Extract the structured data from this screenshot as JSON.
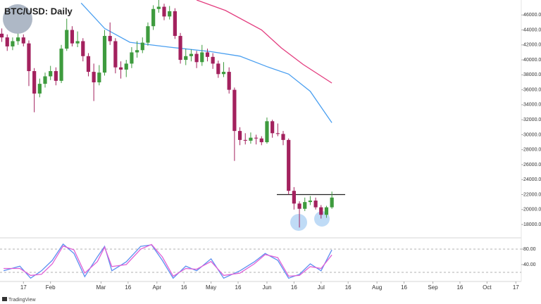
{
  "chart_data": [
    {
      "type": "candlestick",
      "title": "BTC/USD: Daily",
      "x": [
        5,
        8,
        11,
        14,
        17,
        20,
        23,
        26,
        29,
        32,
        35,
        38,
        41,
        44,
        47,
        50,
        53,
        56,
        59,
        62,
        65,
        68,
        71,
        74,
        77,
        80,
        83,
        86,
        89,
        92,
        95,
        98,
        101,
        104,
        107,
        110,
        113,
        116,
        119,
        122,
        125,
        128,
        131,
        134,
        137,
        140,
        143,
        146,
        149,
        152,
        155,
        158,
        161,
        164,
        167,
        170,
        173,
        176,
        179,
        182,
        185,
        188
      ],
      "open": [
        43500,
        43000,
        41800,
        42500,
        43000,
        42200,
        38500,
        35500,
        36800,
        37800,
        38500,
        37200,
        41500,
        44000,
        42200,
        42500,
        40500,
        38400,
        37000,
        38300,
        43200,
        42500,
        39000,
        38700,
        39500,
        41000,
        41300,
        42300,
        44500,
        46800,
        47100,
        45800,
        46500,
        43200,
        40000,
        40500,
        40800,
        39700,
        41000,
        40400,
        39500,
        38100,
        38400,
        36000,
        30500,
        29300,
        29200,
        29600,
        29500,
        29000,
        31800,
        30200,
        30100,
        29300,
        22500,
        20800,
        20100,
        21000,
        21200,
        20300,
        19300,
        20300
      ],
      "high": [
        44200,
        43400,
        43000,
        43500,
        43400,
        42600,
        38900,
        37500,
        38300,
        39200,
        39000,
        42000,
        45500,
        44500,
        43800,
        42900,
        40900,
        39500,
        39300,
        44000,
        45000,
        42900,
        39800,
        40000,
        41700,
        42500,
        43000,
        45000,
        47300,
        48000,
        47500,
        47200,
        46900,
        43600,
        41500,
        41400,
        41200,
        42000,
        41500,
        40900,
        39900,
        39700,
        39000,
        36300,
        31000,
        30200,
        30300,
        30000,
        29800,
        32300,
        32000,
        31500,
        30500,
        29500,
        23000,
        21100,
        21600,
        21800,
        21600,
        20600,
        20500,
        22400
      ],
      "low": [
        42400,
        41200,
        41300,
        42000,
        41800,
        36500,
        33000,
        35000,
        36300,
        37300,
        36600,
        36900,
        41200,
        41800,
        41700,
        39800,
        37800,
        34500,
        36600,
        37900,
        42000,
        38200,
        37500,
        37700,
        38900,
        40300,
        40900,
        41900,
        44000,
        46300,
        45300,
        45400,
        42800,
        39500,
        39300,
        39800,
        38900,
        39200,
        39800,
        38800,
        37600,
        37700,
        35500,
        26500,
        28600,
        28700,
        28800,
        28700,
        28600,
        28800,
        29600,
        29800,
        28600,
        22000,
        20000,
        17600,
        19800,
        20600,
        20000,
        18800,
        18900,
        20100
      ],
      "close": [
        43000,
        41800,
        42500,
        43000,
        42200,
        38500,
        35500,
        36800,
        37800,
        38500,
        37200,
        41500,
        44000,
        42200,
        42500,
        40500,
        38400,
        37000,
        38300,
        43200,
        42500,
        39000,
        38700,
        39500,
        41000,
        41300,
        42300,
        44500,
        46800,
        47100,
        45800,
        46500,
        43200,
        40000,
        40500,
        40800,
        39700,
        41000,
        40400,
        39500,
        38100,
        38400,
        36000,
        30500,
        29300,
        29200,
        29600,
        29500,
        29000,
        31800,
        30200,
        30100,
        29300,
        22500,
        20800,
        20100,
        21000,
        21200,
        20300,
        19300,
        20300,
        21600
      ],
      "up_color": "#3e9b3e",
      "down_color": "#a3215e",
      "lines": [
        {
          "color": "#4a9ff0",
          "x": [
            49,
            62,
            76,
            98,
            121,
            137,
            152,
            164,
            176,
            188
          ],
          "values": [
            47600,
            44200,
            42350,
            41700,
            41100,
            40500,
            39100,
            38100,
            35800,
            31600
          ]
        },
        {
          "color": "#e33d7f",
          "x": [
            113,
            129,
            149,
            160,
            172,
            188
          ],
          "values": [
            48000,
            46600,
            44000,
            41600,
            39400,
            36900
          ]
        }
      ],
      "level": 22000,
      "xlim": [
        4,
        293
      ],
      "ylim": [
        16500,
        48000
      ],
      "yticks": [
        {
          "value": 18000,
          "label": "18000.00"
        },
        {
          "value": 20000,
          "label": "20000.00"
        },
        {
          "value": 22000,
          "label": "22000.00"
        },
        {
          "value": 24000,
          "label": "24000.00"
        },
        {
          "value": 26000,
          "label": "26000.00"
        },
        {
          "value": 28000,
          "label": "28000.00"
        },
        {
          "value": 30000,
          "label": "30000.00"
        },
        {
          "value": 32000,
          "label": "32000.00"
        },
        {
          "value": 34000,
          "label": "34000.00"
        },
        {
          "value": 36000,
          "label": "36000.00"
        },
        {
          "value": 38000,
          "label": "38000.00"
        },
        {
          "value": 40000,
          "label": "40000.00"
        },
        {
          "value": 42000,
          "label": "42000.00"
        },
        {
          "value": 44000,
          "label": "44000.00"
        },
        {
          "value": 46000,
          "label": "46000.00"
        }
      ]
    },
    {
      "type": "line",
      "x": [
        6,
        15,
        21,
        27,
        33,
        39,
        45,
        51,
        58,
        62,
        66,
        74,
        82,
        88,
        94,
        100,
        107,
        113,
        121,
        128,
        137,
        145,
        151,
        158,
        164,
        170,
        176,
        182,
        188
      ],
      "series": [
        {
          "color": "#5b8ff0",
          "values": [
            24,
            36,
            5,
            24,
            51,
            93,
            69,
            9,
            60,
            87,
            24,
            47,
            87,
            91,
            51,
            5,
            36,
            24,
            55,
            5,
            24,
            47,
            69,
            51,
            5,
            15,
            42,
            24,
            78
          ]
        },
        {
          "color": "#e05fd6",
          "values": [
            30,
            30,
            12,
            15,
            42,
            88,
            78,
            18,
            48,
            85,
            35,
            40,
            80,
            92,
            60,
            10,
            30,
            28,
            48,
            12,
            18,
            42,
            66,
            58,
            10,
            12,
            35,
            30,
            65
          ]
        }
      ],
      "bands": [
        20,
        80
      ],
      "xlim": [
        4,
        293
      ],
      "ylim": [
        0,
        100
      ],
      "yticks": [
        {
          "value": 40,
          "label": "40.00"
        },
        {
          "value": 80,
          "label": "80.00"
        }
      ],
      "xticks": [
        17,
        {
          "value": 32,
          "label": "Feb"
        },
        {
          "value": 60,
          "label": "Mar"
        },
        {
          "value": 75,
          "label": "16"
        },
        {
          "value": 91,
          "label": "Apr"
        },
        {
          "value": 106,
          "label": "16"
        },
        {
          "value": 121,
          "label": "May"
        },
        {
          "value": 136,
          "label": "16"
        },
        {
          "value": 152,
          "label": "Jun"
        },
        {
          "value": 167,
          "label": "16"
        },
        {
          "value": 182,
          "label": "Jul"
        },
        {
          "value": 197,
          "label": "16"
        },
        {
          "value": 213,
          "label": "Aug"
        },
        {
          "value": 228,
          "label": "16"
        },
        {
          "value": 244,
          "label": "Sep"
        },
        {
          "value": 259,
          "label": "16"
        },
        {
          "value": 274,
          "label": "Oct"
        },
        {
          "value": 290,
          "label": "17"
        }
      ]
    }
  ],
  "footer": "TradingView"
}
